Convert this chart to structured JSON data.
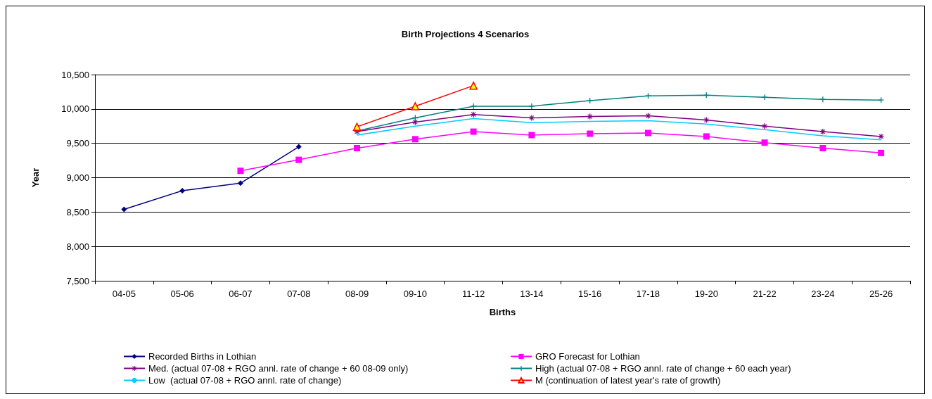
{
  "chart_data": {
    "type": "line",
    "title": "Birth Projections 4 Scenarios",
    "xlabel": "Births",
    "ylabel": "Year",
    "categories": [
      "04-05",
      "05-06",
      "06-07",
      "07-08",
      "08-09",
      "09-10",
      "11-12",
      "13-14",
      "15-16",
      "17-18",
      "19-20",
      "21-22",
      "23-24",
      "25-26"
    ],
    "ylim": [
      7500,
      10500
    ],
    "yticks": [
      {
        "value": 7500,
        "label": "7,500"
      },
      {
        "value": 8000,
        "label": "8,000"
      },
      {
        "value": 8500,
        "label": "8,500"
      },
      {
        "value": 9000,
        "label": "9,000"
      },
      {
        "value": 9500,
        "label": "9,500"
      },
      {
        "value": 10000,
        "label": "10,000"
      },
      {
        "value": 10500,
        "label": "10,500"
      }
    ],
    "grid": "y",
    "legend": "bottom",
    "series": [
      {
        "name": "Recorded Births in Lothian",
        "color": "#000080",
        "marker": "diamond",
        "values": [
          8540,
          8810,
          8920,
          9450,
          null,
          null,
          null,
          null,
          null,
          null,
          null,
          null,
          null,
          null
        ]
      },
      {
        "name": "GRO Forecast for Lothian",
        "color": "#ff00ff",
        "marker": "square",
        "values": [
          null,
          null,
          9100,
          9260,
          9430,
          9560,
          9670,
          9620,
          9640,
          9650,
          9600,
          9510,
          9430,
          9360
        ]
      },
      {
        "name": "Med. (actual 07-08 + RGO annl. rate of change + 60 08-09 only)",
        "color": "#800080",
        "marker": "star",
        "values": [
          null,
          null,
          null,
          null,
          9670,
          9810,
          9920,
          9870,
          9890,
          9900,
          9840,
          9750,
          9670,
          9600
        ]
      },
      {
        "name": "High (actual 07-08 + RGO annl. rate of change + 60 each year)",
        "color": "#008080",
        "marker": "cross",
        "values": [
          null,
          null,
          null,
          null,
          9680,
          9870,
          10040,
          10040,
          10120,
          10190,
          10200,
          10170,
          10140,
          10130
        ]
      },
      {
        "name": "Low  (actual 07-08 + RGO annl. rate of change)",
        "color": "#00ccff",
        "marker": "none",
        "values": [
          null,
          null,
          null,
          null,
          9620,
          9750,
          9860,
          9800,
          9820,
          9830,
          9780,
          9700,
          9610,
          9550
        ]
      },
      {
        "name": "M (continuation of latest year's rate of growth)",
        "color": "#ff0000",
        "marker": "triangle",
        "values": [
          null,
          null,
          null,
          null,
          9740,
          10040,
          10340,
          null,
          null,
          null,
          null,
          null,
          null,
          null
        ]
      }
    ]
  }
}
